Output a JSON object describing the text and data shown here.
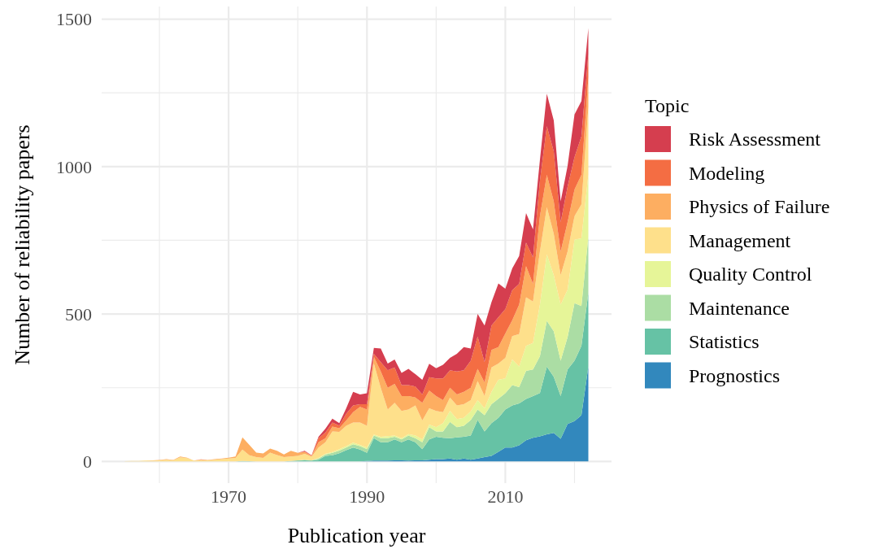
{
  "chart_data": {
    "type": "area",
    "stacked": true,
    "xlabel": "Publication year",
    "ylabel": "Number of reliability papers",
    "legend_title": "Topic",
    "legend": "right",
    "grid": true,
    "x": [
      1955,
      1956,
      1957,
      1958,
      1959,
      1960,
      1961,
      1962,
      1963,
      1964,
      1965,
      1966,
      1967,
      1968,
      1969,
      1970,
      1971,
      1972,
      1973,
      1974,
      1975,
      1976,
      1977,
      1978,
      1979,
      1980,
      1981,
      1982,
      1983,
      1984,
      1985,
      1986,
      1987,
      1988,
      1989,
      1990,
      1991,
      1992,
      1993,
      1994,
      1995,
      1996,
      1997,
      1998,
      1999,
      2000,
      2001,
      2002,
      2003,
      2004,
      2005,
      2006,
      2007,
      2008,
      2009,
      2010,
      2011,
      2012,
      2013,
      2014,
      2015,
      2016,
      2017,
      2018,
      2019,
      2020,
      2021,
      2022
    ],
    "xlim": [
      1951.65,
      2025.35
    ],
    "xticks": [
      {
        "value": 1960,
        "label": null
      },
      1970,
      {
        "value": 1980,
        "label": null
      },
      1990,
      {
        "value": 2000,
        "label": null
      },
      2010,
      {
        "value": 2020,
        "label": null
      }
    ],
    "ylim": [
      -73.5,
      1543
    ],
    "yticks": [
      0,
      {
        "value": 250,
        "label": null
      },
      500,
      {
        "value": 750,
        "label": null
      },
      1000,
      {
        "value": 1250,
        "label": null
      },
      1500
    ],
    "series": [
      {
        "name": "Prognostics",
        "color": "#3288bd",
        "values": [
          0,
          0,
          0,
          0,
          0,
          0,
          0,
          0,
          0,
          0,
          0,
          0,
          0,
          0,
          0,
          0,
          0,
          0,
          0,
          0,
          0,
          0,
          0,
          0,
          0,
          0,
          0,
          0,
          0,
          0,
          0,
          0,
          0,
          0,
          0,
          2,
          3,
          3,
          3,
          4,
          4,
          3,
          4,
          4,
          6,
          8,
          8,
          10,
          6,
          10,
          6,
          10,
          15,
          19,
          33,
          47,
          47,
          55,
          72,
          80,
          85,
          92,
          97,
          77,
          127,
          137,
          157,
          322
        ]
      },
      {
        "name": "Statistics",
        "color": "#66c2a5",
        "values": [
          0,
          0,
          0,
          0,
          0,
          0,
          0,
          0,
          0,
          0,
          0,
          0,
          0,
          0,
          0,
          0,
          0,
          2,
          1,
          0,
          0,
          0,
          0,
          0,
          2,
          3,
          4,
          3,
          6,
          19,
          21,
          28,
          38,
          47,
          40,
          27,
          76,
          62,
          62,
          71,
          61,
          72,
          61,
          38,
          69,
          76,
          72,
          69,
          76,
          74,
          82,
          131,
          87,
          111,
          115,
          129,
          143,
          142,
          140,
          142,
          147,
          230,
          190,
          145,
          185,
          205,
          235,
          250
        ]
      },
      {
        "name": "Maintenance",
        "color": "#abdda4",
        "values": [
          0,
          0,
          0,
          0,
          0,
          0,
          0,
          0,
          0,
          0,
          0,
          0,
          0,
          0,
          0,
          0,
          0,
          0,
          0,
          0,
          0,
          0,
          0,
          0,
          0,
          1,
          2,
          1,
          4,
          5,
          8,
          9,
          9,
          11,
          12,
          13,
          9,
          14,
          14,
          9,
          10,
          13,
          14,
          23,
          41,
          18,
          22,
          55,
          34,
          37,
          52,
          35,
          55,
          64,
          65,
          55,
          69,
          55,
          95,
          90,
          125,
          155,
          155,
          120,
          110,
          195,
          135,
          190
        ]
      },
      {
        "name": "Quality Control",
        "color": "#e6f598",
        "values": [
          0,
          0,
          0,
          0,
          0,
          0,
          0,
          0,
          0,
          0,
          0,
          0,
          0,
          0,
          0,
          0,
          0,
          0,
          0,
          0,
          0,
          0,
          0,
          0,
          0,
          0,
          0,
          0,
          2,
          2,
          3,
          5,
          5,
          6,
          4,
          5,
          3,
          5,
          7,
          4,
          4,
          5,
          9,
          10,
          9,
          14,
          28,
          37,
          28,
          27,
          30,
          32,
          23,
          42,
          64,
          51,
          87,
          70,
          85,
          90,
          175,
          225,
          190,
          190,
          160,
          215,
          230,
          210
        ]
      },
      {
        "name": "Management",
        "color": "#fee08b",
        "values": [
          1,
          2,
          2,
          3,
          3,
          4,
          6,
          4,
          14,
          11,
          3,
          5,
          4,
          6,
          8,
          10,
          12,
          38,
          20,
          15,
          12,
          30,
          22,
          15,
          15,
          15,
          20,
          12,
          35,
          39,
          70,
          58,
          69,
          68,
          76,
          74,
          241,
          165,
          90,
          111,
          92,
          83,
          102,
          64,
          55,
          55,
          37,
          46,
          46,
          46,
          38,
          65,
          42,
          83,
          55,
          69,
          79,
          110,
          165,
          140,
          180,
          160,
          140,
          100,
          130,
          80,
          115,
          230
        ]
      },
      {
        "name": "Physics of Failure",
        "color": "#fdae61",
        "values": [
          0,
          0,
          0,
          0,
          1,
          1,
          2,
          1,
          3,
          2,
          0,
          1,
          1,
          2,
          2,
          3,
          5,
          42,
          35,
          15,
          15,
          14,
          14,
          9,
          19,
          10,
          6,
          3,
          18,
          14,
          16,
          13,
          18,
          35,
          53,
          55,
          23,
          56,
          74,
          64,
          51,
          46,
          27,
          60,
          60,
          51,
          41,
          33,
          37,
          42,
          42,
          41,
          46,
          59,
          56,
          83,
          54,
          100,
          105,
          60,
          120,
          110,
          110,
          80,
          100,
          90,
          100,
          100
        ]
      },
      {
        "name": "Modeling",
        "color": "#f46d43",
        "values": [
          0,
          0,
          0,
          0,
          0,
          0,
          0,
          0,
          0,
          0,
          0,
          1,
          0,
          0,
          0,
          0,
          0,
          0,
          0,
          0,
          0,
          0,
          0,
          0,
          0,
          0,
          2,
          1,
          14,
          19,
          14,
          9,
          23,
          23,
          9,
          18,
          10,
          32,
          59,
          56,
          37,
          37,
          37,
          28,
          46,
          60,
          74,
          59,
          78,
          73,
          92,
          110,
          69,
          83,
          101,
          83,
          102,
          70,
          80,
          90,
          120,
          165,
          170,
          100,
          120,
          110,
          130,
          80
        ]
      },
      {
        "name": "Risk Assessment",
        "color": "#d53e4f",
        "values": [
          0,
          0,
          0,
          0,
          0,
          0,
          0,
          0,
          0,
          0,
          0,
          0,
          0,
          0,
          0,
          0,
          0,
          0,
          0,
          0,
          0,
          0,
          0,
          0,
          0,
          0,
          2,
          1,
          5,
          13,
          13,
          8,
          18,
          46,
          33,
          37,
          20,
          46,
          23,
          27,
          41,
          55,
          42,
          50,
          45,
          34,
          46,
          42,
          60,
          79,
          41,
          76,
          124,
          79,
          115,
          69,
          74,
          95,
          100,
          95,
          70,
          110,
          105,
          70,
          70,
          145,
          120,
          88
        ]
      }
    ]
  }
}
